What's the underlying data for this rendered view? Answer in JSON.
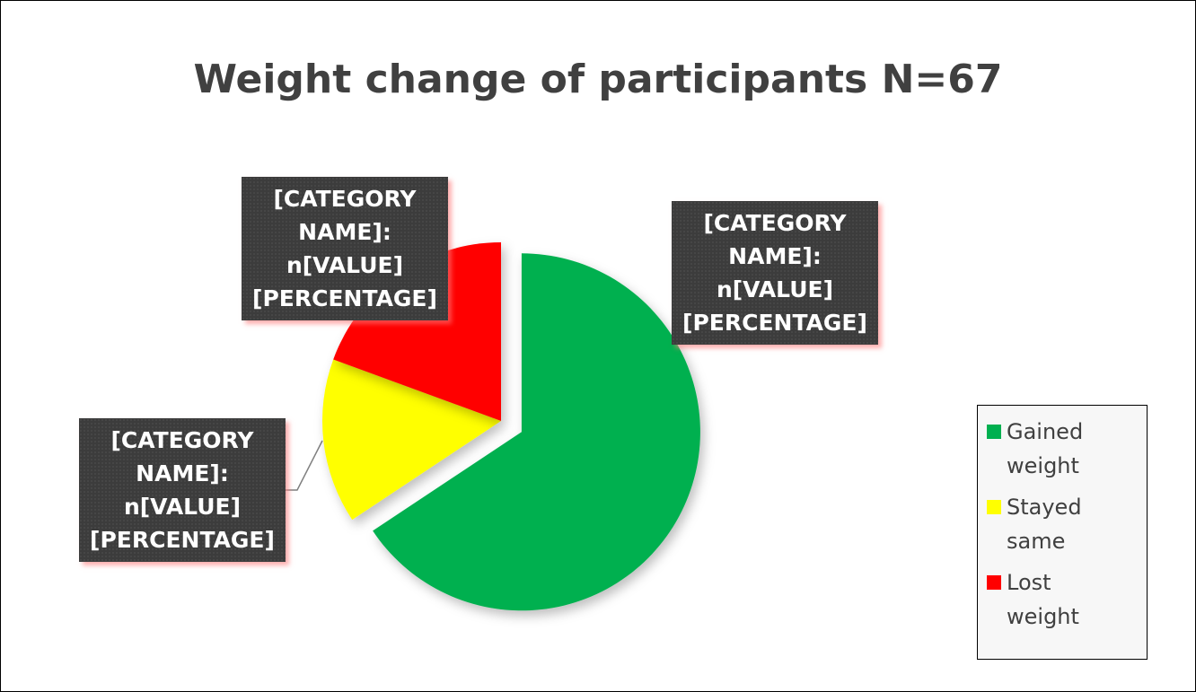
{
  "chart_data": {
    "type": "pie",
    "title": "Weight change of participants  N=67",
    "categories": [
      "Gained weight",
      "Stayed same",
      "Lost weight"
    ],
    "values": [
      44,
      10,
      13
    ],
    "colors": [
      "#00b050",
      "#ffff00",
      "#ff0000"
    ],
    "data_labels": [
      "[CATEGORY NAME]: n[VALUE] [PERCENTAGE]",
      "[CATEGORY NAME]: n[VALUE] [PERCENTAGE]",
      "[CATEGORY NAME]: n[VALUE] [PERCENTAGE]"
    ],
    "exploded": 0,
    "legend": "right"
  }
}
